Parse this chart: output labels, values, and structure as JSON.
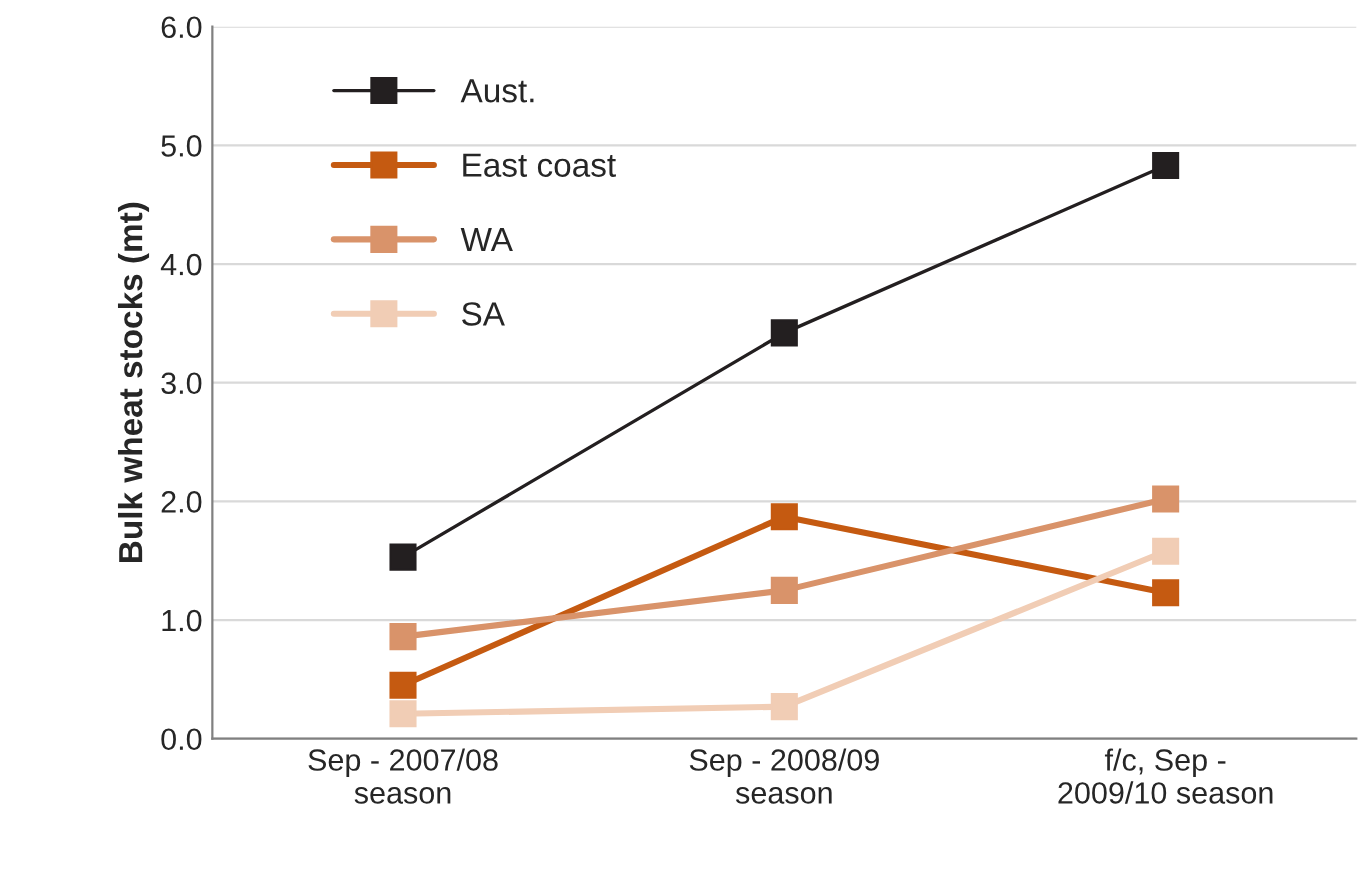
{
  "chart_data": {
    "type": "line",
    "ylabel": "Bulk wheat stocks (mt)",
    "categories": [
      "Sep - 2007/08\nseason",
      "Sep - 2008/09\nseason",
      "f/c, Sep -\n2009/10 season"
    ],
    "series": [
      {
        "name": "Aust.",
        "color": "#231f20",
        "values": [
          1.53,
          3.42,
          4.83
        ]
      },
      {
        "name": "East coast",
        "color": "#c55a11",
        "values": [
          0.45,
          1.87,
          1.23
        ]
      },
      {
        "name": "WA",
        "color": "#d9936a",
        "values": [
          0.86,
          1.25,
          2.02
        ]
      },
      {
        "name": "SA",
        "color": "#f1cdb5",
        "values": [
          0.21,
          0.27,
          1.58
        ]
      }
    ],
    "ylim": [
      0,
      6
    ],
    "yticks": [
      {
        "value": 0,
        "label": "0.0"
      },
      {
        "value": 1,
        "label": "1.0"
      },
      {
        "value": 2,
        "label": "2.0"
      },
      {
        "value": 3,
        "label": "3.0"
      },
      {
        "value": 4,
        "label": "4.0"
      },
      {
        "value": 5,
        "label": "5.0"
      },
      {
        "value": 6,
        "label": "6.0"
      }
    ],
    "grid": "y",
    "legend": "top left",
    "marker": "square",
    "line_style": "solid"
  }
}
